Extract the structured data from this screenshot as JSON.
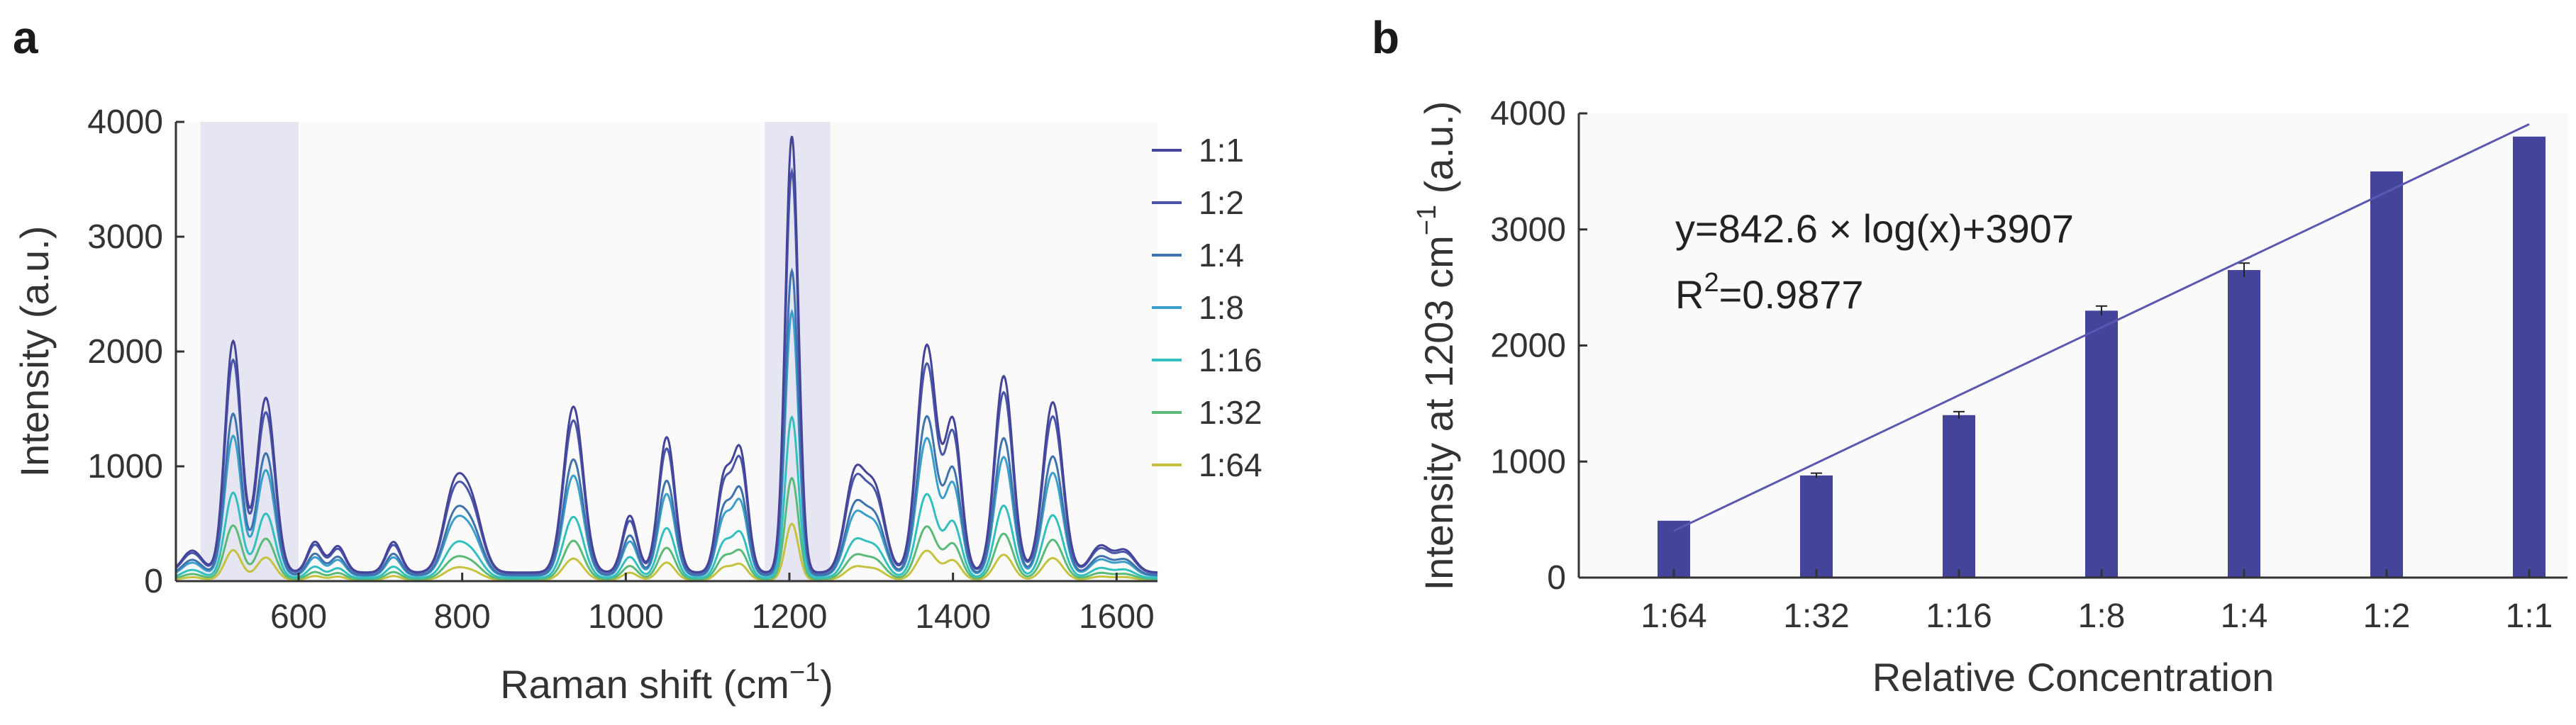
{
  "panel_a_label": "a",
  "panel_b_label": "b",
  "chart_data": [
    {
      "type": "line",
      "panel": "a",
      "xlabel": "Raman shift (cm",
      "xlabel_sup": "−1",
      "xlabel_end": ")",
      "ylabel": "Intensity (a.u.)",
      "xlim": [
        450,
        1650
      ],
      "ylim": [
        0,
        4000
      ],
      "xticks": [
        600,
        800,
        1000,
        1200,
        1400,
        1600
      ],
      "yticks": [
        0,
        1000,
        2000,
        3000,
        4000
      ],
      "highlight_bands": [
        [
          480,
          600
        ],
        [
          1170,
          1250
        ]
      ],
      "highlight_color": "#e6e6f2",
      "grid": false,
      "legend_position": "right",
      "peaks": [
        {
          "center": 470,
          "width": 12,
          "rel": 0.05
        },
        {
          "center": 520,
          "width": 10,
          "rel": 0.53
        },
        {
          "center": 560,
          "width": 11,
          "rel": 0.4
        },
        {
          "center": 620,
          "width": 9,
          "rel": 0.07
        },
        {
          "center": 648,
          "width": 9,
          "rel": 0.06
        },
        {
          "center": 716,
          "width": 9,
          "rel": 0.07
        },
        {
          "center": 790,
          "width": 13,
          "rel": 0.18
        },
        {
          "center": 812,
          "width": 13,
          "rel": 0.14
        },
        {
          "center": 936,
          "width": 12,
          "rel": 0.38
        },
        {
          "center": 1005,
          "width": 9,
          "rel": 0.13
        },
        {
          "center": 1050,
          "width": 10,
          "rel": 0.31
        },
        {
          "center": 1120,
          "width": 9,
          "rel": 0.21
        },
        {
          "center": 1140,
          "width": 9,
          "rel": 0.27
        },
        {
          "center": 1203,
          "width": 8,
          "rel": 1.0
        },
        {
          "center": 1280,
          "width": 12,
          "rel": 0.22
        },
        {
          "center": 1305,
          "width": 12,
          "rel": 0.18
        },
        {
          "center": 1368,
          "width": 12,
          "rel": 0.52
        },
        {
          "center": 1400,
          "width": 10,
          "rel": 0.34
        },
        {
          "center": 1462,
          "width": 11,
          "rel": 0.45
        },
        {
          "center": 1522,
          "width": 12,
          "rel": 0.39
        },
        {
          "center": 1580,
          "width": 12,
          "rel": 0.06
        },
        {
          "center": 1610,
          "width": 12,
          "rel": 0.05
        }
      ],
      "series": [
        {
          "name": "1:1",
          "peak_1203": 3800,
          "color": "#44449a"
        },
        {
          "name": "1:2",
          "peak_1203": 3500,
          "color": "#4a56a8"
        },
        {
          "name": "1:4",
          "peak_1203": 2650,
          "color": "#3f73ad"
        },
        {
          "name": "1:8",
          "peak_1203": 2300,
          "color": "#3b9fc9"
        },
        {
          "name": "1:16",
          "peak_1203": 1400,
          "color": "#34bfbf"
        },
        {
          "name": "1:32",
          "peak_1203": 880,
          "color": "#5cba78"
        },
        {
          "name": "1:64",
          "peak_1203": 490,
          "color": "#c4c23e"
        }
      ]
    },
    {
      "type": "bar",
      "panel": "b",
      "categories": [
        "1:64",
        "1:32",
        "1:16",
        "1:8",
        "1:4",
        "1:2",
        "1:1"
      ],
      "x_numeric": [
        0.015625,
        0.03125,
        0.0625,
        0.125,
        0.25,
        0.5,
        1
      ],
      "values": [
        490,
        880,
        1400,
        2300,
        2650,
        3500,
        3800
      ],
      "errors": [
        0,
        20,
        30,
        40,
        60,
        0,
        0
      ],
      "bar_color": "#44449a",
      "xlabel": "Relative Concentration",
      "ylabel": "Intensity at 1203 cm",
      "ylabel_sup": "−1",
      "ylabel_end": " (a.u.)",
      "ylim": [
        0,
        4000
      ],
      "yticks": [
        0,
        1000,
        2000,
        3000,
        4000
      ],
      "fit_line": {
        "slope": 842.6,
        "intercept": 3907,
        "color": "#5a58b0"
      },
      "equation": "y=842.6 × log(x)+3907",
      "r2_prefix": "R",
      "r2_sup": "2",
      "r2_value": "=0.9877",
      "grid": false
    }
  ]
}
